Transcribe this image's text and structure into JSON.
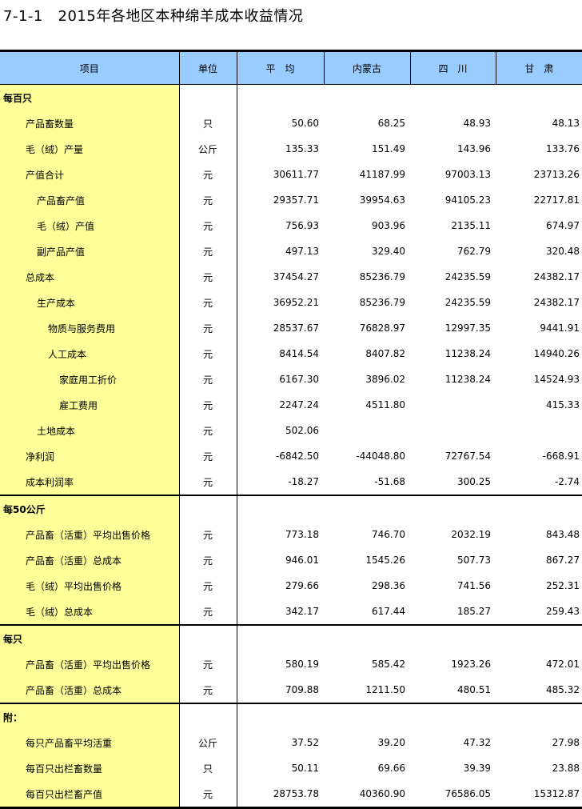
{
  "title": "7-1-1   2015年各地区本种绵羊成本收益情况",
  "headers": [
    "项目",
    "单位",
    "平　均",
    "内蒙古",
    "四　川",
    "甘　肃"
  ],
  "colors": {
    "header_bg": "#99ccff",
    "item_bg": "#ffff99"
  },
  "rows": [
    {
      "label": "每百只",
      "section": true
    },
    {
      "label": "产品畜数量",
      "level": 1,
      "unit": "只",
      "values": [
        "50.60",
        "68.25",
        "48.93",
        "48.13"
      ]
    },
    {
      "label": "毛（绒）产量",
      "level": 1,
      "unit": "公斤",
      "values": [
        "135.33",
        "151.49",
        "143.96",
        "133.76"
      ]
    },
    {
      "label": "产值合计",
      "level": 1,
      "unit": "元",
      "values": [
        "30611.77",
        "41187.99",
        "97003.13",
        "23713.26"
      ]
    },
    {
      "label": "产品畜产值",
      "level": 2,
      "unit": "元",
      "values": [
        "29357.71",
        "39954.63",
        "94105.23",
        "22717.81"
      ]
    },
    {
      "label": "毛（绒）产值",
      "level": 2,
      "unit": "元",
      "values": [
        "756.93",
        "903.96",
        "2135.11",
        "674.97"
      ]
    },
    {
      "label": "副产品产值",
      "level": 2,
      "unit": "元",
      "values": [
        "497.13",
        "329.40",
        "762.79",
        "320.48"
      ]
    },
    {
      "label": "总成本",
      "level": 1,
      "unit": "元",
      "values": [
        "37454.27",
        "85236.79",
        "24235.59",
        "24382.17"
      ]
    },
    {
      "label": "生产成本",
      "level": 2,
      "unit": "元",
      "values": [
        "36952.21",
        "85236.79",
        "24235.59",
        "24382.17"
      ]
    },
    {
      "label": "物质与服务费用",
      "level": 3,
      "unit": "元",
      "values": [
        "28537.67",
        "76828.97",
        "12997.35",
        "9441.91"
      ]
    },
    {
      "label": "人工成本",
      "level": 3,
      "unit": "元",
      "values": [
        "8414.54",
        "8407.82",
        "11238.24",
        "14940.26"
      ]
    },
    {
      "label": "家庭用工折价",
      "level": 4,
      "unit": "元",
      "values": [
        "6167.30",
        "3896.02",
        "11238.24",
        "14524.93"
      ]
    },
    {
      "label": "雇工费用",
      "level": 4,
      "unit": "元",
      "values": [
        "2247.24",
        "4511.80",
        "",
        "415.33"
      ]
    },
    {
      "label": "土地成本",
      "level": 2,
      "unit": "元",
      "values": [
        "502.06",
        "",
        "",
        ""
      ]
    },
    {
      "label": "净利润",
      "level": 1,
      "unit": "元",
      "values": [
        "-6842.50",
        "-44048.80",
        "72767.54",
        "-668.91"
      ]
    },
    {
      "label": "成本利润率",
      "level": 1,
      "unit": "元",
      "values": [
        "-18.27",
        "-51.68",
        "300.25",
        "-2.74"
      ],
      "end": true
    },
    {
      "label": "每50公斤",
      "section": true
    },
    {
      "label": "产品畜（活重）平均出售价格",
      "level": 1,
      "unit": "元",
      "values": [
        "773.18",
        "746.70",
        "2032.19",
        "843.48"
      ]
    },
    {
      "label": "产品畜（活重）总成本",
      "level": 1,
      "unit": "元",
      "values": [
        "946.01",
        "1545.26",
        "507.73",
        "867.27"
      ]
    },
    {
      "label": "毛（绒）平均出售价格",
      "level": 1,
      "unit": "元",
      "values": [
        "279.66",
        "298.36",
        "741.56",
        "252.31"
      ]
    },
    {
      "label": "毛（绒）总成本",
      "level": 1,
      "unit": "元",
      "values": [
        "342.17",
        "617.44",
        "185.27",
        "259.43"
      ],
      "end": true
    },
    {
      "label": "每只",
      "section": true
    },
    {
      "label": "产品畜（活重）平均出售价格",
      "level": 1,
      "unit": "元",
      "values": [
        "580.19",
        "585.42",
        "1923.26",
        "472.01"
      ]
    },
    {
      "label": "产品畜（活重）总成本",
      "level": 1,
      "unit": "元",
      "values": [
        "709.88",
        "1211.50",
        "480.51",
        "485.32"
      ],
      "end": true
    },
    {
      "label": "附：",
      "section": true
    },
    {
      "label": "每只产品畜平均活重",
      "level": 1,
      "unit": "公斤",
      "values": [
        "37.52",
        "39.20",
        "47.32",
        "27.98"
      ]
    },
    {
      "label": "每百只出栏畜数量",
      "level": 1,
      "unit": "只",
      "values": [
        "50.11",
        "69.66",
        "39.39",
        "23.88"
      ]
    },
    {
      "label": "每百只出栏畜产值",
      "level": 1,
      "unit": "元",
      "values": [
        "28753.78",
        "40360.90",
        "76586.05",
        "15312.87"
      ]
    }
  ]
}
